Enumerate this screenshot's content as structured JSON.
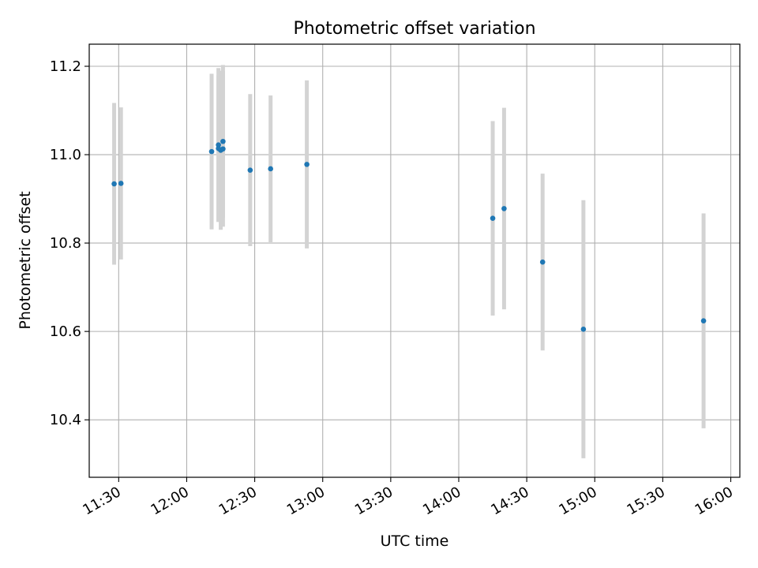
{
  "chart_data": {
    "type": "scatter",
    "title": "Photometric offset variation",
    "xlabel": "UTC time",
    "ylabel": "Photometric offset",
    "x_axis_type": "time",
    "xlim": [
      "11:17",
      "16:04"
    ],
    "ylim": [
      10.27,
      11.25
    ],
    "x_ticks": [
      "11:30",
      "12:00",
      "12:30",
      "13:00",
      "13:30",
      "14:00",
      "14:30",
      "15:00",
      "15:30",
      "16:00"
    ],
    "y_ticks": [
      "10.4",
      "10.6",
      "10.8",
      "11.0",
      "11.2"
    ],
    "grid": true,
    "legend": "none",
    "marker_color": "#1f77b4",
    "errorbar_color": "#d3d3d3",
    "points": [
      {
        "x": "11:28",
        "y": 10.934,
        "err": 0.183
      },
      {
        "x": "11:31",
        "y": 10.935,
        "err": 0.172
      },
      {
        "x": "12:11",
        "y": 11.007,
        "err": 0.176
      },
      {
        "x": "12:14",
        "y": 11.022,
        "err": 0.174
      },
      {
        "x": "12:14",
        "y": 11.014,
        "err": 0.166
      },
      {
        "x": "12:15",
        "y": 11.01,
        "err": 0.18
      },
      {
        "x": "12:16",
        "y": 11.013,
        "err": 0.176
      },
      {
        "x": "12:16",
        "y": 11.03,
        "err": 0.173
      },
      {
        "x": "12:28",
        "y": 10.965,
        "err": 0.172
      },
      {
        "x": "12:37",
        "y": 10.968,
        "err": 0.166
      },
      {
        "x": "12:53",
        "y": 10.978,
        "err": 0.19
      },
      {
        "x": "14:15",
        "y": 10.856,
        "err": 0.22
      },
      {
        "x": "14:20",
        "y": 10.878,
        "err": 0.228
      },
      {
        "x": "14:37",
        "y": 10.757,
        "err": 0.2
      },
      {
        "x": "14:55",
        "y": 10.605,
        "err": 0.292
      },
      {
        "x": "15:48",
        "y": 10.624,
        "err": 0.243
      }
    ]
  }
}
